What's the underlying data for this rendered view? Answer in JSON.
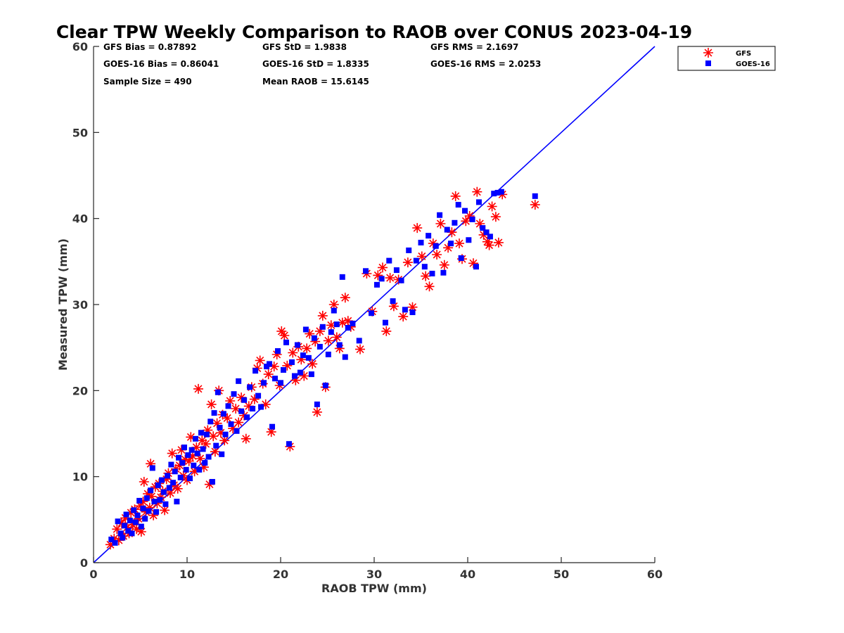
{
  "chart_data": {
    "type": "scatter",
    "title": "Clear TPW Weekly Comparison to RAOB over CONUS 2023-04-19",
    "xlabel": "RAOB TPW (mm)",
    "ylabel": "Measured TPW (mm)",
    "xlim": [
      0,
      60
    ],
    "ylim": [
      0,
      60
    ],
    "xticks": [
      "0",
      "10",
      "20",
      "30",
      "40",
      "50",
      "60"
    ],
    "yticks": [
      "0",
      "10",
      "20",
      "30",
      "40",
      "50",
      "60"
    ],
    "grid": false,
    "legend_position": "top-right (outside plot)",
    "reference_line": [
      [
        0,
        0
      ],
      [
        60,
        60
      ]
    ],
    "stats": {
      "gfs_bias": "GFS Bias = 0.87892",
      "gfs_std": "GFS StD = 1.9838",
      "gfs_rms": "GFS RMS = 2.1697",
      "goes_bias": "GOES-16 Bias = 0.86041",
      "goes_std": "GOES-16 StD = 1.8335",
      "goes_rms": "GOES-16 RMS = 2.0253",
      "sample_size": "Sample Size = 490",
      "mean_raob": "Mean RAOB = 15.6145"
    },
    "series": [
      {
        "name": "GFS",
        "marker": "asterisk",
        "color": "#ff0000",
        "points": [
          [
            1.8,
            2.1
          ],
          [
            2.2,
            2.8
          ],
          [
            2.5,
            3.9
          ],
          [
            2.7,
            2.6
          ],
          [
            3.0,
            4.6
          ],
          [
            3.2,
            3.1
          ],
          [
            3.4,
            5.2
          ],
          [
            3.6,
            4.1
          ],
          [
            3.8,
            3.4
          ],
          [
            4.0,
            5.8
          ],
          [
            4.2,
            4.4
          ],
          [
            4.4,
            6.2
          ],
          [
            4.6,
            3.9
          ],
          [
            4.8,
            5.1
          ],
          [
            5.0,
            6.6
          ],
          [
            5.1,
            3.6
          ],
          [
            5.3,
            7.1
          ],
          [
            5.4,
            9.4
          ],
          [
            5.6,
            5.9
          ],
          [
            5.8,
            8.0
          ],
          [
            6.0,
            6.4
          ],
          [
            6.1,
            11.5
          ],
          [
            6.2,
            7.7
          ],
          [
            6.4,
            5.5
          ],
          [
            6.6,
            8.8
          ],
          [
            6.8,
            6.9
          ],
          [
            7.0,
            9.2
          ],
          [
            7.2,
            7.6
          ],
          [
            7.4,
            8.3
          ],
          [
            7.6,
            6.1
          ],
          [
            7.8,
            9.7
          ],
          [
            8.0,
            10.4
          ],
          [
            8.2,
            8.1
          ],
          [
            8.4,
            12.7
          ],
          [
            8.6,
            9.0
          ],
          [
            8.8,
            10.9
          ],
          [
            9.0,
            8.6
          ],
          [
            9.2,
            11.3
          ],
          [
            9.4,
            13.1
          ],
          [
            9.6,
            10.1
          ],
          [
            9.8,
            12.0
          ],
          [
            10.0,
            9.6
          ],
          [
            10.2,
            11.8
          ],
          [
            10.4,
            14.6
          ],
          [
            10.6,
            12.4
          ],
          [
            10.8,
            10.6
          ],
          [
            11.0,
            13.4
          ],
          [
            11.2,
            20.2
          ],
          [
            11.4,
            12.1
          ],
          [
            11.6,
            14.2
          ],
          [
            11.8,
            11.1
          ],
          [
            12.0,
            13.8
          ],
          [
            12.2,
            15.4
          ],
          [
            12.4,
            9.1
          ],
          [
            12.6,
            18.4
          ],
          [
            12.8,
            14.7
          ],
          [
            13.0,
            12.9
          ],
          [
            13.2,
            16.2
          ],
          [
            13.4,
            20.0
          ],
          [
            13.6,
            15.1
          ],
          [
            13.8,
            17.2
          ],
          [
            14.0,
            14.2
          ],
          [
            14.3,
            16.8
          ],
          [
            14.6,
            18.8
          ],
          [
            14.9,
            15.6
          ],
          [
            15.2,
            17.9
          ],
          [
            15.5,
            16.3
          ],
          [
            15.8,
            19.2
          ],
          [
            16.1,
            17.1
          ],
          [
            16.3,
            14.4
          ],
          [
            16.6,
            18.2
          ],
          [
            16.9,
            20.4
          ],
          [
            17.2,
            19.0
          ],
          [
            17.5,
            22.6
          ],
          [
            17.8,
            23.5
          ],
          [
            18.1,
            20.8
          ],
          [
            18.4,
            18.4
          ],
          [
            18.7,
            21.9
          ],
          [
            19.0,
            15.2
          ],
          [
            19.3,
            22.8
          ],
          [
            19.6,
            24.2
          ],
          [
            19.9,
            20.6
          ],
          [
            20.1,
            26.9
          ],
          [
            20.4,
            26.4
          ],
          [
            20.7,
            22.9
          ],
          [
            21.0,
            13.5
          ],
          [
            21.3,
            24.4
          ],
          [
            21.6,
            21.2
          ],
          [
            21.9,
            25.1
          ],
          [
            22.2,
            23.6
          ],
          [
            22.5,
            21.7
          ],
          [
            22.8,
            24.9
          ],
          [
            23.1,
            26.6
          ],
          [
            23.4,
            23.1
          ],
          [
            23.7,
            25.7
          ],
          [
            23.9,
            17.5
          ],
          [
            24.2,
            26.9
          ],
          [
            24.5,
            28.7
          ],
          [
            24.8,
            20.4
          ],
          [
            25.1,
            25.8
          ],
          [
            25.4,
            27.6
          ],
          [
            25.7,
            30.0
          ],
          [
            26.0,
            26.2
          ],
          [
            26.3,
            24.9
          ],
          [
            26.6,
            27.9
          ],
          [
            26.9,
            30.8
          ],
          [
            27.2,
            28.1
          ],
          [
            27.5,
            27.4
          ],
          [
            28.5,
            24.8
          ],
          [
            29.2,
            33.6
          ],
          [
            29.8,
            29.2
          ],
          [
            30.4,
            33.4
          ],
          [
            30.9,
            34.3
          ],
          [
            31.3,
            26.9
          ],
          [
            31.7,
            33.1
          ],
          [
            32.1,
            29.8
          ],
          [
            32.6,
            32.9
          ],
          [
            33.1,
            28.6
          ],
          [
            33.6,
            34.9
          ],
          [
            34.1,
            29.7
          ],
          [
            34.6,
            38.9
          ],
          [
            35.1,
            35.6
          ],
          [
            35.5,
            33.3
          ],
          [
            35.9,
            32.1
          ],
          [
            36.3,
            37.1
          ],
          [
            36.7,
            35.8
          ],
          [
            37.1,
            39.4
          ],
          [
            37.5,
            34.6
          ],
          [
            37.9,
            36.6
          ],
          [
            38.3,
            38.4
          ],
          [
            38.7,
            42.6
          ],
          [
            39.1,
            37.1
          ],
          [
            39.4,
            35.3
          ],
          [
            39.8,
            39.7
          ],
          [
            40.2,
            40.3
          ],
          [
            40.6,
            34.8
          ],
          [
            41.0,
            43.1
          ],
          [
            41.3,
            39.4
          ],
          [
            41.7,
            38.1
          ],
          [
            42.1,
            37.3
          ],
          [
            42.3,
            36.9
          ],
          [
            42.6,
            41.4
          ],
          [
            43.0,
            40.2
          ],
          [
            43.3,
            37.2
          ],
          [
            43.7,
            42.8
          ],
          [
            47.2,
            41.6
          ]
        ]
      },
      {
        "name": "GOES-16",
        "marker": "square",
        "color": "#0000ff",
        "points": [
          [
            1.9,
            2.7
          ],
          [
            2.3,
            2.3
          ],
          [
            2.6,
            4.8
          ],
          [
            2.9,
            3.4
          ],
          [
            3.1,
            2.9
          ],
          [
            3.3,
            4.3
          ],
          [
            3.5,
            5.6
          ],
          [
            3.7,
            3.7
          ],
          [
            3.9,
            4.9
          ],
          [
            4.1,
            3.4
          ],
          [
            4.3,
            6.1
          ],
          [
            4.5,
            4.7
          ],
          [
            4.7,
            5.5
          ],
          [
            4.9,
            7.2
          ],
          [
            5.1,
            4.2
          ],
          [
            5.3,
            6.3
          ],
          [
            5.5,
            5.1
          ],
          [
            5.7,
            7.5
          ],
          [
            5.9,
            6.0
          ],
          [
            6.1,
            8.4
          ],
          [
            6.3,
            11.0
          ],
          [
            6.5,
            7.1
          ],
          [
            6.7,
            5.9
          ],
          [
            6.9,
            9.0
          ],
          [
            7.1,
            7.3
          ],
          [
            7.3,
            9.6
          ],
          [
            7.5,
            8.2
          ],
          [
            7.7,
            6.8
          ],
          [
            7.9,
            10.1
          ],
          [
            8.1,
            8.7
          ],
          [
            8.3,
            11.4
          ],
          [
            8.5,
            9.3
          ],
          [
            8.7,
            10.6
          ],
          [
            8.9,
            7.1
          ],
          [
            9.1,
            12.2
          ],
          [
            9.3,
            9.9
          ],
          [
            9.5,
            11.6
          ],
          [
            9.7,
            13.4
          ],
          [
            9.9,
            10.8
          ],
          [
            10.1,
            12.5
          ],
          [
            10.3,
            9.8
          ],
          [
            10.5,
            13.1
          ],
          [
            10.7,
            11.3
          ],
          [
            10.9,
            14.4
          ],
          [
            11.1,
            12.7
          ],
          [
            11.3,
            10.8
          ],
          [
            11.5,
            15.1
          ],
          [
            11.7,
            13.2
          ],
          [
            11.9,
            11.6
          ],
          [
            12.1,
            14.9
          ],
          [
            12.3,
            12.3
          ],
          [
            12.5,
            16.4
          ],
          [
            12.7,
            9.4
          ],
          [
            12.9,
            17.4
          ],
          [
            13.1,
            13.6
          ],
          [
            13.3,
            19.8
          ],
          [
            13.5,
            15.7
          ],
          [
            13.7,
            12.6
          ],
          [
            13.9,
            17.3
          ],
          [
            14.1,
            14.9
          ],
          [
            14.4,
            18.2
          ],
          [
            14.7,
            16.1
          ],
          [
            15.0,
            19.6
          ],
          [
            15.3,
            15.3
          ],
          [
            15.5,
            21.1
          ],
          [
            15.8,
            17.6
          ],
          [
            16.1,
            18.9
          ],
          [
            16.4,
            16.9
          ],
          [
            16.7,
            20.4
          ],
          [
            17.0,
            17.9
          ],
          [
            17.3,
            22.3
          ],
          [
            17.6,
            19.4
          ],
          [
            17.9,
            18.1
          ],
          [
            18.2,
            20.9
          ],
          [
            18.5,
            22.8
          ],
          [
            18.8,
            23.1
          ],
          [
            19.1,
            15.8
          ],
          [
            19.4,
            21.4
          ],
          [
            19.7,
            24.6
          ],
          [
            20.0,
            20.9
          ],
          [
            20.3,
            22.4
          ],
          [
            20.6,
            25.6
          ],
          [
            20.9,
            13.8
          ],
          [
            21.2,
            23.3
          ],
          [
            21.5,
            21.7
          ],
          [
            21.8,
            25.3
          ],
          [
            22.1,
            22.1
          ],
          [
            22.4,
            24.1
          ],
          [
            22.7,
            27.1
          ],
          [
            23.0,
            23.8
          ],
          [
            23.3,
            21.9
          ],
          [
            23.6,
            26.1
          ],
          [
            23.9,
            18.4
          ],
          [
            24.2,
            25.1
          ],
          [
            24.5,
            27.4
          ],
          [
            24.8,
            20.6
          ],
          [
            25.1,
            24.2
          ],
          [
            25.4,
            26.8
          ],
          [
            25.7,
            29.3
          ],
          [
            26.0,
            27.7
          ],
          [
            26.3,
            25.3
          ],
          [
            26.6,
            33.2
          ],
          [
            26.9,
            23.9
          ],
          [
            27.2,
            27.3
          ],
          [
            27.7,
            27.8
          ],
          [
            28.4,
            25.8
          ],
          [
            29.1,
            33.9
          ],
          [
            29.7,
            29.0
          ],
          [
            30.3,
            32.3
          ],
          [
            30.8,
            33.0
          ],
          [
            31.2,
            27.9
          ],
          [
            31.6,
            35.1
          ],
          [
            32.0,
            30.4
          ],
          [
            32.4,
            34.0
          ],
          [
            32.9,
            32.8
          ],
          [
            33.3,
            29.4
          ],
          [
            33.7,
            36.3
          ],
          [
            34.1,
            29.1
          ],
          [
            34.5,
            35.1
          ],
          [
            35.0,
            37.2
          ],
          [
            35.4,
            34.4
          ],
          [
            35.8,
            38.0
          ],
          [
            36.2,
            33.6
          ],
          [
            36.6,
            36.8
          ],
          [
            37.0,
            40.4
          ],
          [
            37.4,
            33.7
          ],
          [
            37.8,
            38.7
          ],
          [
            38.2,
            37.1
          ],
          [
            38.6,
            39.5
          ],
          [
            39.0,
            41.6
          ],
          [
            39.3,
            35.4
          ],
          [
            39.7,
            40.9
          ],
          [
            40.1,
            37.5
          ],
          [
            40.5,
            39.9
          ],
          [
            40.9,
            34.4
          ],
          [
            41.2,
            41.9
          ],
          [
            41.6,
            38.9
          ],
          [
            42.0,
            38.4
          ],
          [
            42.4,
            37.9
          ],
          [
            42.8,
            42.9
          ],
          [
            43.2,
            43.0
          ],
          [
            43.6,
            43.1
          ],
          [
            47.2,
            42.6
          ]
        ]
      }
    ]
  }
}
